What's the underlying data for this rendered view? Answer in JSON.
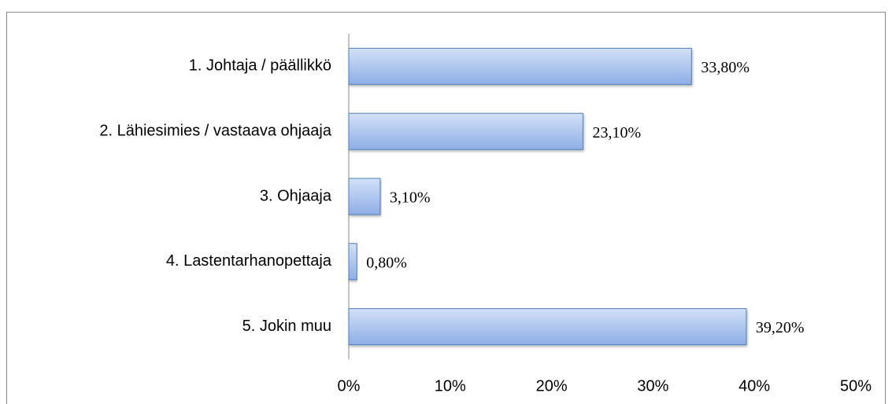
{
  "chart_data": {
    "type": "bar",
    "orientation": "horizontal",
    "categories": [
      "1. Johtaja / päällikkö",
      "2. Lähiesimies / vastaava ohjaaja",
      "3. Ohjaaja",
      "4. Lastentarhanopettaja",
      "5. Jokin muu"
    ],
    "values": [
      33.8,
      23.1,
      3.1,
      0.8,
      39.2
    ],
    "value_labels": [
      "33,80%",
      "23,10%",
      "3,10%",
      "0,80%",
      "39,20%"
    ],
    "color": "#a9c2ef",
    "xlim": [
      0,
      50
    ],
    "xticks": [
      {
        "value": 0,
        "label": "0%"
      },
      {
        "value": 10,
        "label": "10%"
      },
      {
        "value": 20,
        "label": "20%"
      },
      {
        "value": 30,
        "label": "30%"
      },
      {
        "value": 40,
        "label": "40%"
      },
      {
        "value": 50,
        "label": "50%"
      }
    ],
    "grid": false
  }
}
